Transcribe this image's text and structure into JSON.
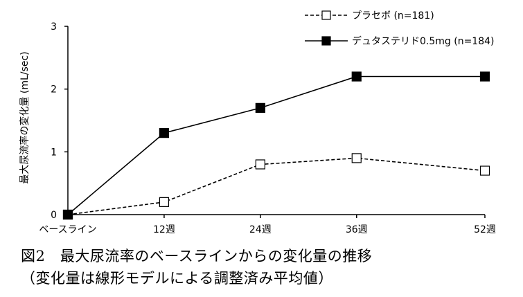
{
  "chart_data": {
    "type": "line",
    "categories": [
      "ベースライン",
      "12週",
      "24週",
      "36週",
      "52週"
    ],
    "x": [
      0,
      12,
      24,
      36,
      52
    ],
    "series": [
      {
        "name": "プラセボ (n=181)",
        "values": [
          0,
          0.2,
          0.8,
          0.9,
          0.7
        ],
        "color": "#000000",
        "line_style": "dashed",
        "marker": "open-square"
      },
      {
        "name": "デュタステリド0.5mg (n=184)",
        "values": [
          0,
          1.3,
          1.7,
          2.2,
          2.2
        ],
        "color": "#000000",
        "line_style": "solid",
        "marker": "filled-square"
      }
    ],
    "ylabel": "最大尿流率の変化量 (mL/sec)",
    "xlabel": "",
    "ylim": [
      0,
      3
    ],
    "yticks": [
      "0",
      "1",
      "2",
      "3"
    ],
    "grid": false,
    "legend_position": "top-right"
  },
  "caption": {
    "line1": "図2　最大尿流率のベースラインからの変化量の推移",
    "line2": "（変化量は線形モデルによる調整済み平均値）"
  }
}
